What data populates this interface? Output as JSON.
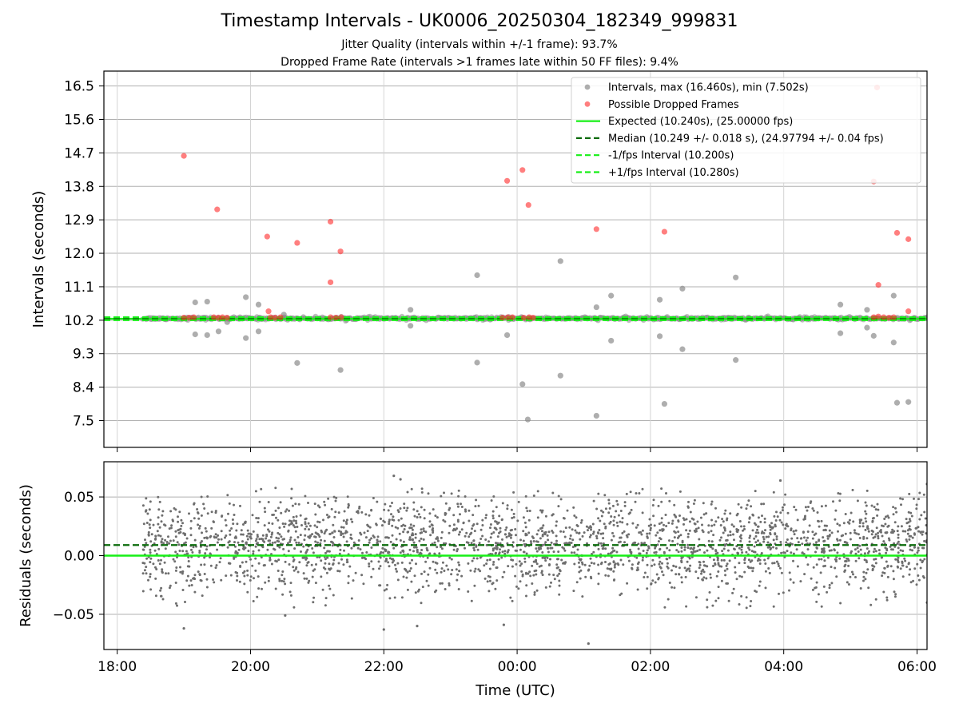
{
  "chart_data": {
    "title": "Timestamp Intervals - UK0006_20250304_182349_999831",
    "subtitle_1": "Jitter Quality (intervals within +/-1 frame): 93.7%",
    "subtitle_2": "Dropped Frame Rate (intervals >1 frames late within 50 FF files): 9.4%",
    "xlabel": "Time (UTC)",
    "x_ticks": [
      "18:00",
      "20:00",
      "22:00",
      "00:00",
      "02:00",
      "04:00",
      "06:00"
    ],
    "x_range_hours": [
      17.8,
      30.15
    ],
    "panels": [
      {
        "type": "scatter",
        "ylabel": "Intervals (seconds)",
        "ylim": [
          6.78,
          16.9
        ],
        "y_ticks": [
          "7.5",
          "8.4",
          "9.3",
          "10.2",
          "11.1",
          "12.0",
          "12.9",
          "13.8",
          "14.7",
          "15.6",
          "16.5"
        ],
        "grid": true,
        "legend_position": "top-right",
        "legend": [
          "Intervals, max (16.460s), min (7.502s)",
          "Possible Dropped Frames",
          "Expected (10.240s), (25.00000 fps)",
          "Median (10.249 +/- 0.018 s), (24.97794 +/- 0.04 fps)",
          "-1/fps Interval (10.200s)",
          "+1/fps Interval (10.280s)"
        ],
        "expected": 10.24,
        "median": 10.249,
        "minus_1fps": 10.2,
        "plus_1fps": 10.28,
        "band_range_hours": [
          18.38,
          30.15
        ],
        "outlier_intervals": [
          {
            "x": 19.17,
            "y": 10.68
          },
          {
            "x": 19.17,
            "y": 9.82
          },
          {
            "x": 19.35,
            "y": 10.7
          },
          {
            "x": 19.35,
            "y": 9.8
          },
          {
            "x": 19.52,
            "y": 9.9
          },
          {
            "x": 19.93,
            "y": 10.82
          },
          {
            "x": 19.93,
            "y": 9.72
          },
          {
            "x": 20.12,
            "y": 10.62
          },
          {
            "x": 20.12,
            "y": 9.9
          },
          {
            "x": 20.7,
            "y": 9.05
          },
          {
            "x": 21.35,
            "y": 8.86
          },
          {
            "x": 22.4,
            "y": 10.48
          },
          {
            "x": 22.4,
            "y": 10.05
          },
          {
            "x": 23.4,
            "y": 11.41
          },
          {
            "x": 23.4,
            "y": 9.06
          },
          {
            "x": 23.85,
            "y": 9.8
          },
          {
            "x": 24.08,
            "y": 8.48
          },
          {
            "x": 24.16,
            "y": 7.53
          },
          {
            "x": 24.65,
            "y": 11.79
          },
          {
            "x": 24.65,
            "y": 8.71
          },
          {
            "x": 25.19,
            "y": 10.55
          },
          {
            "x": 25.19,
            "y": 7.63
          },
          {
            "x": 25.41,
            "y": 10.86
          },
          {
            "x": 25.41,
            "y": 9.65
          },
          {
            "x": 26.14,
            "y": 10.75
          },
          {
            "x": 26.14,
            "y": 9.77
          },
          {
            "x": 26.21,
            "y": 7.95
          },
          {
            "x": 26.48,
            "y": 11.05
          },
          {
            "x": 26.48,
            "y": 9.42
          },
          {
            "x": 27.28,
            "y": 11.35
          },
          {
            "x": 27.28,
            "y": 9.13
          },
          {
            "x": 28.85,
            "y": 10.62
          },
          {
            "x": 28.85,
            "y": 9.85
          },
          {
            "x": 29.25,
            "y": 10.48
          },
          {
            "x": 29.25,
            "y": 10.0
          },
          {
            "x": 29.35,
            "y": 9.78
          },
          {
            "x": 29.65,
            "y": 10.86
          },
          {
            "x": 29.65,
            "y": 9.6
          },
          {
            "x": 29.7,
            "y": 7.98
          },
          {
            "x": 29.87,
            "y": 8.0
          },
          {
            "x": 19.65,
            "y": 10.15
          },
          {
            "x": 20.5,
            "y": 10.35
          }
        ],
        "dropped_frames": [
          {
            "x": 19.0,
            "y": 14.62
          },
          {
            "x": 19.5,
            "y": 13.18
          },
          {
            "x": 20.25,
            "y": 12.45
          },
          {
            "x": 20.7,
            "y": 12.28
          },
          {
            "x": 21.2,
            "y": 12.85
          },
          {
            "x": 21.35,
            "y": 12.05
          },
          {
            "x": 21.2,
            "y": 11.22
          },
          {
            "x": 20.27,
            "y": 10.44
          },
          {
            "x": 23.85,
            "y": 13.95
          },
          {
            "x": 24.08,
            "y": 14.24
          },
          {
            "x": 24.17,
            "y": 13.3
          },
          {
            "x": 25.19,
            "y": 12.65
          },
          {
            "x": 26.21,
            "y": 12.58
          },
          {
            "x": 29.35,
            "y": 13.93
          },
          {
            "x": 29.4,
            "y": 16.46
          },
          {
            "x": 29.42,
            "y": 11.15
          },
          {
            "x": 29.7,
            "y": 12.55
          },
          {
            "x": 29.87,
            "y": 12.38
          },
          {
            "x": 29.87,
            "y": 10.44
          },
          {
            "x": 19.0,
            "y": 10.27
          },
          {
            "x": 19.08,
            "y": 10.27
          },
          {
            "x": 19.15,
            "y": 10.28
          },
          {
            "x": 19.45,
            "y": 10.28
          },
          {
            "x": 19.52,
            "y": 10.27
          },
          {
            "x": 19.58,
            "y": 10.28
          },
          {
            "x": 19.65,
            "y": 10.27
          },
          {
            "x": 20.3,
            "y": 10.28
          },
          {
            "x": 20.37,
            "y": 10.27
          },
          {
            "x": 20.45,
            "y": 10.28
          },
          {
            "x": 21.2,
            "y": 10.28
          },
          {
            "x": 21.28,
            "y": 10.27
          },
          {
            "x": 21.36,
            "y": 10.28
          },
          {
            "x": 23.78,
            "y": 10.27
          },
          {
            "x": 23.86,
            "y": 10.28
          },
          {
            "x": 23.93,
            "y": 10.28
          },
          {
            "x": 24.1,
            "y": 10.27
          },
          {
            "x": 24.18,
            "y": 10.28
          },
          {
            "x": 24.24,
            "y": 10.27
          },
          {
            "x": 29.35,
            "y": 10.28
          },
          {
            "x": 29.42,
            "y": 10.3
          },
          {
            "x": 29.5,
            "y": 10.28
          },
          {
            "x": 29.58,
            "y": 10.27
          },
          {
            "x": 29.65,
            "y": 10.28
          }
        ]
      },
      {
        "type": "scatter",
        "ylabel": "Residuals (seconds)",
        "ylim": [
          -0.08,
          0.08
        ],
        "y_ticks": [
          "0.05",
          "0.00",
          "−0.05"
        ],
        "y_tick_values": [
          0.05,
          0.0,
          -0.05
        ],
        "grid": true,
        "expected_line": 0.0,
        "median_line": 0.009,
        "residual_spread": 0.02,
        "residual_range_hours": [
          18.38,
          30.15
        ],
        "residual_extremes": [
          {
            "x": 19.0,
            "y": -0.062
          },
          {
            "x": 20.52,
            "y": -0.051
          },
          {
            "x": 22.0,
            "y": -0.063
          },
          {
            "x": 22.5,
            "y": -0.06
          },
          {
            "x": 23.8,
            "y": -0.059
          },
          {
            "x": 25.07,
            "y": -0.075
          },
          {
            "x": 22.15,
            "y": 0.068
          },
          {
            "x": 22.25,
            "y": 0.065
          },
          {
            "x": 27.95,
            "y": 0.064
          },
          {
            "x": 30.15,
            "y": 0.061
          },
          {
            "x": 30.15,
            "y": -0.04
          }
        ]
      }
    ],
    "colors": {
      "interval": "#8c8c8c",
      "dropped": "#ff2a2a",
      "expected": "#17ef17",
      "median": "#0a6b0a",
      "residual": "#6e6e6e",
      "grid": "#b0b0b0"
    }
  }
}
